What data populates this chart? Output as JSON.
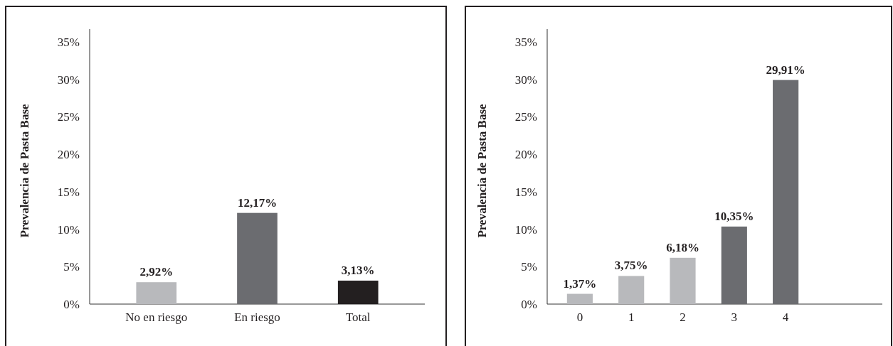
{
  "chart_data": [
    {
      "type": "bar",
      "ylabel": "Prevalencia de Pasta Base",
      "categories": [
        "No en riesgo",
        "En riesgo",
        "Total"
      ],
      "values": [
        2.92,
        12.17,
        3.13
      ],
      "colors": [
        "#b8b9bc",
        "#6b6c70",
        "#231f20"
      ],
      "value_labels": [
        "2,92%",
        "12,17%",
        "3,13%"
      ],
      "ylim": [
        0,
        36.7
      ],
      "yticks": [
        {
          "value": 0,
          "label": "0%"
        },
        {
          "value": 5,
          "label": "5%"
        },
        {
          "value": 10,
          "label": "10%"
        },
        {
          "value": 15,
          "label": "15%"
        },
        {
          "value": 20,
          "label": "20%"
        },
        {
          "value": 25,
          "label": "25%"
        },
        {
          "value": 30,
          "label": "30%"
        },
        {
          "value": 35,
          "label": "35%"
        }
      ]
    },
    {
      "type": "bar",
      "ylabel": "Prevalencia de Pasta Base",
      "categories": [
        "0",
        "1",
        "2",
        "3",
        "4"
      ],
      "values": [
        1.37,
        3.75,
        6.18,
        10.35,
        29.91
      ],
      "colors": [
        "#b8b9bc",
        "#b8b9bc",
        "#b8b9bc",
        "#6b6c70",
        "#6b6c70"
      ],
      "value_labels": [
        "1,37%",
        "3,75%",
        "6,18%",
        "10,35%",
        "29,91%"
      ],
      "ylim": [
        0,
        36.7
      ],
      "yticks": [
        {
          "value": 0,
          "label": "0%"
        },
        {
          "value": 5,
          "label": "5%"
        },
        {
          "value": 10,
          "label": "10%"
        },
        {
          "value": 15,
          "label": "15%"
        },
        {
          "value": 20,
          "label": "20%"
        },
        {
          "value": 25,
          "label": "25%"
        },
        {
          "value": 30,
          "label": "30%"
        },
        {
          "value": 35,
          "label": "35%"
        }
      ]
    }
  ]
}
